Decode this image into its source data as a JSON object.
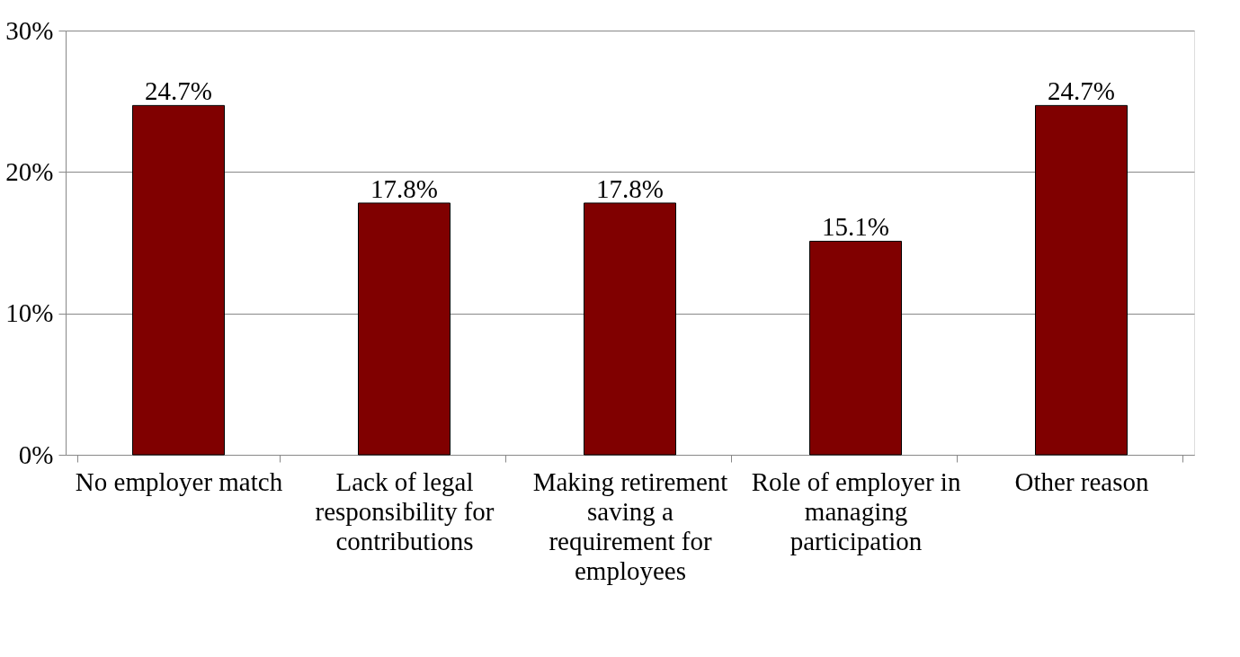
{
  "chart_data": {
    "type": "bar",
    "categories": [
      "No employer match",
      "Lack of legal responsibility for contributions",
      "Making retirement saving a requirement for employees",
      "Role of employer in managing participation",
      "Other reason"
    ],
    "values": [
      24.7,
      17.8,
      17.8,
      15.1,
      24.7
    ],
    "value_labels": [
      "24.7%",
      "17.8%",
      "17.8%",
      "15.1%",
      "24.7%"
    ],
    "color": "#800000",
    "ylim": [
      0,
      30
    ],
    "yticks": [
      {
        "value": 0,
        "label": "0%"
      },
      {
        "value": 10,
        "label": "10%"
      },
      {
        "value": 20,
        "label": "20%"
      },
      {
        "value": 30,
        "label": "30%"
      }
    ],
    "grid": "y"
  }
}
